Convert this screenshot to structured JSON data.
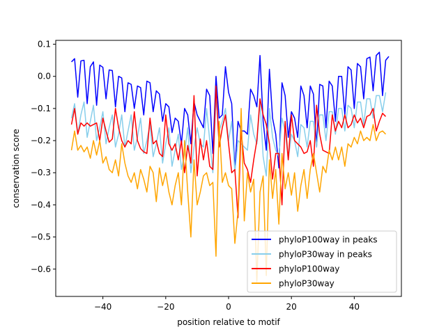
{
  "chart_data": {
    "type": "line",
    "title": "",
    "xlabel": "position relative to motif",
    "ylabel": "conservation score",
    "xlim": [
      -55,
      55
    ],
    "ylim": [
      -0.685,
      0.112
    ],
    "xticks": [
      -40,
      -20,
      0,
      20,
      40
    ],
    "xtick_labels": [
      "−40",
      "−20",
      "0",
      "20",
      "40"
    ],
    "yticks": [
      0.1,
      0.0,
      -0.1,
      -0.2,
      -0.3,
      -0.4,
      -0.5,
      -0.6
    ],
    "ytick_labels": [
      "0.1",
      "0.0",
      "−0.1",
      "−0.2",
      "−0.3",
      "−0.4",
      "−0.5",
      "−0.6"
    ],
    "grid": false,
    "legend_position": "lower-right",
    "x_start": -50,
    "x_step": 1,
    "series": [
      {
        "name": "phyloP100way in peaks",
        "color": "#0000ff",
        "values": [
          0.045,
          0.055,
          -0.065,
          0.048,
          0.05,
          -0.085,
          0.03,
          0.045,
          -0.09,
          0.035,
          0.028,
          -0.07,
          0.02,
          0.018,
          -0.095,
          0.0,
          -0.005,
          -0.11,
          -0.02,
          -0.025,
          -0.1,
          -0.03,
          -0.035,
          -0.12,
          -0.015,
          -0.02,
          -0.11,
          -0.045,
          -0.055,
          -0.14,
          -0.085,
          -0.095,
          -0.175,
          -0.13,
          -0.14,
          -0.21,
          -0.1,
          -0.12,
          -0.21,
          -0.08,
          -0.12,
          -0.14,
          -0.16,
          -0.04,
          -0.06,
          -0.24,
          0.0,
          -0.13,
          -0.12,
          0.03,
          -0.05,
          -0.085,
          -0.29,
          -0.14,
          -0.17,
          -0.17,
          -0.18,
          -0.04,
          -0.06,
          -0.095,
          0.065,
          -0.14,
          -0.23,
          0.022,
          -0.13,
          -0.18,
          -0.285,
          -0.02,
          -0.06,
          -0.19,
          -0.11,
          -0.13,
          -0.19,
          -0.03,
          -0.06,
          -0.16,
          -0.03,
          -0.055,
          -0.22,
          -0.025,
          -0.03,
          -0.16,
          -0.015,
          -0.03,
          -0.14,
          0.0,
          0.0,
          -0.12,
          0.03,
          0.02,
          -0.1,
          0.04,
          0.03,
          -0.07,
          0.055,
          0.06,
          -0.045,
          0.065,
          0.075,
          -0.06,
          0.05,
          0.062
        ]
      },
      {
        "name": "phyloP30way in peaks",
        "color": "#87ceeb",
        "values": [
          -0.13,
          -0.085,
          -0.18,
          -0.12,
          -0.08,
          -0.19,
          -0.14,
          -0.09,
          -0.2,
          -0.16,
          -0.11,
          -0.21,
          -0.16,
          -0.12,
          -0.22,
          -0.18,
          -0.12,
          -0.22,
          -0.17,
          -0.12,
          -0.23,
          -0.19,
          -0.13,
          -0.24,
          -0.2,
          -0.15,
          -0.25,
          -0.21,
          -0.16,
          -0.27,
          -0.21,
          -0.16,
          -0.28,
          -0.23,
          -0.18,
          -0.29,
          -0.24,
          -0.16,
          -0.3,
          -0.22,
          -0.16,
          -0.21,
          -0.22,
          -0.1,
          -0.2,
          -0.3,
          -0.07,
          -0.17,
          -0.14,
          -0.1,
          -0.2,
          -0.14,
          -0.3,
          -0.2,
          -0.21,
          -0.22,
          -0.23,
          -0.12,
          -0.18,
          -0.21,
          -0.08,
          -0.25,
          -0.31,
          -0.1,
          -0.19,
          -0.23,
          -0.25,
          -0.13,
          -0.17,
          -0.26,
          -0.18,
          -0.2,
          -0.25,
          -0.15,
          -0.16,
          -0.22,
          -0.14,
          -0.14,
          -0.22,
          -0.12,
          -0.12,
          -0.2,
          -0.11,
          -0.11,
          -0.18,
          -0.1,
          -0.1,
          -0.17,
          -0.09,
          -0.1,
          -0.16,
          -0.08,
          -0.08,
          -0.15,
          -0.07,
          -0.07,
          -0.13,
          -0.06,
          -0.06,
          -0.11,
          -0.05
        ]
      },
      {
        "name": "phyloP100way",
        "color": "#ff0000",
        "values": [
          -0.15,
          -0.1,
          -0.18,
          -0.145,
          -0.155,
          -0.145,
          -0.155,
          -0.15,
          -0.145,
          -0.2,
          -0.13,
          -0.17,
          -0.205,
          -0.195,
          -0.1,
          -0.16,
          -0.2,
          -0.22,
          -0.2,
          -0.21,
          -0.11,
          -0.2,
          -0.225,
          -0.235,
          -0.24,
          -0.13,
          -0.21,
          -0.2,
          -0.24,
          -0.25,
          -0.12,
          -0.21,
          -0.23,
          -0.21,
          -0.26,
          -0.2,
          -0.3,
          -0.215,
          -0.27,
          -0.06,
          -0.31,
          -0.195,
          -0.26,
          -0.2,
          -0.28,
          -0.29,
          -0.03,
          -0.22,
          -0.16,
          -0.12,
          -0.21,
          -0.3,
          -0.29,
          -0.44,
          -0.17,
          -0.27,
          -0.29,
          -0.33,
          -0.26,
          -0.2,
          -0.07,
          -0.12,
          -0.15,
          -0.21,
          -0.32,
          -0.24,
          -0.24,
          -0.4,
          -0.14,
          -0.26,
          -0.12,
          -0.2,
          -0.21,
          -0.22,
          -0.24,
          -0.235,
          -0.2,
          -0.28,
          -0.09,
          -0.18,
          -0.23,
          -0.235,
          -0.24,
          -0.12,
          -0.17,
          -0.14,
          -0.16,
          -0.12,
          -0.16,
          -0.15,
          -0.12,
          -0.145,
          -0.13,
          -0.16,
          -0.125,
          -0.12,
          -0.1,
          -0.17,
          -0.14,
          -0.115,
          -0.125
        ]
      },
      {
        "name": "phyloP30way",
        "color": "#ffa500",
        "values": [
          -0.23,
          -0.17,
          -0.23,
          -0.215,
          -0.235,
          -0.22,
          -0.255,
          -0.2,
          -0.245,
          -0.2,
          -0.27,
          -0.25,
          -0.29,
          -0.3,
          -0.26,
          -0.31,
          -0.21,
          -0.27,
          -0.31,
          -0.33,
          -0.3,
          -0.35,
          -0.29,
          -0.32,
          -0.36,
          -0.28,
          -0.3,
          -0.39,
          -0.285,
          -0.34,
          -0.3,
          -0.36,
          -0.4,
          -0.34,
          -0.3,
          -0.4,
          -0.2,
          -0.36,
          -0.5,
          -0.26,
          -0.4,
          -0.36,
          -0.31,
          -0.3,
          -0.34,
          -0.33,
          -0.56,
          -0.14,
          -0.33,
          -0.3,
          -0.34,
          -0.35,
          -0.52,
          -0.42,
          -0.1,
          -0.45,
          -0.3,
          -0.36,
          -0.32,
          -0.64,
          -0.36,
          -0.31,
          -0.62,
          -0.26,
          -0.38,
          -0.29,
          -0.46,
          -0.24,
          -0.35,
          -0.3,
          -0.37,
          -0.3,
          -0.42,
          -0.34,
          -0.29,
          -0.38,
          -0.29,
          -0.24,
          -0.3,
          -0.36,
          -0.28,
          -0.3,
          -0.23,
          -0.26,
          -0.22,
          -0.26,
          -0.22,
          -0.28,
          -0.21,
          -0.22,
          -0.19,
          -0.21,
          -0.17,
          -0.2,
          -0.19,
          -0.2,
          -0.15,
          -0.2,
          -0.175,
          -0.17,
          -0.18
        ]
      }
    ]
  }
}
